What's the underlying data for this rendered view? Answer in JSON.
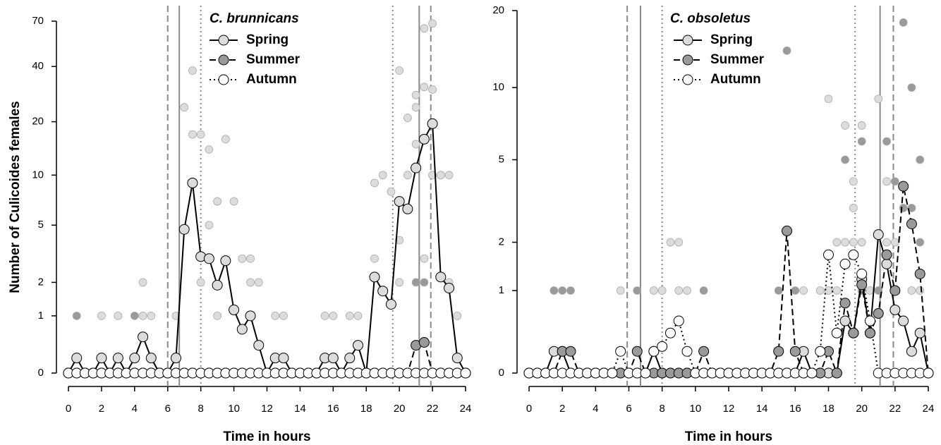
{
  "chart_data": [
    {
      "type": "line",
      "title": "C. brunnicans",
      "ylabel": "Number of Culicoides females",
      "xlabel": "Time in hours",
      "yscale": "log1p",
      "xlim": [
        0,
        24
      ],
      "xticks": [
        0,
        2,
        4,
        6,
        8,
        10,
        12,
        14,
        16,
        18,
        20,
        22,
        24
      ],
      "ylim": [
        0,
        70
      ],
      "yticks": [
        0,
        1,
        2,
        5,
        10,
        20,
        40,
        70
      ],
      "x": [
        0,
        0.5,
        1,
        1.5,
        2,
        2.5,
        3,
        3.5,
        4,
        4.5,
        5,
        5.5,
        6,
        6.5,
        7,
        7.5,
        8,
        8.5,
        9,
        9.5,
        10,
        10.5,
        11,
        11.5,
        12,
        12.5,
        13,
        13.5,
        14,
        14.5,
        15,
        15.5,
        16,
        16.5,
        17,
        17.5,
        18,
        18.5,
        19,
        19.5,
        20,
        20.5,
        21,
        21.5,
        22,
        22.5,
        23,
        23.5,
        24
      ],
      "series": [
        {
          "name": "Spring",
          "color": "#dcdcdc",
          "line_style": "solid",
          "values": [
            0,
            0.2,
            0,
            0,
            0.2,
            0,
            0.2,
            0,
            0.2,
            0.55,
            0.2,
            0,
            0,
            0.2,
            4.7,
            9,
            3.1,
            3,
            1.9,
            2.9,
            1.15,
            0.7,
            1,
            0.4,
            0,
            0.2,
            0.2,
            0,
            0,
            0,
            0,
            0.2,
            0.2,
            0,
            0.2,
            0.4,
            0,
            2.2,
            1.7,
            1.3,
            7,
            6.3,
            11,
            16,
            19.5,
            2.2,
            1.8,
            0.2,
            0
          ]
        },
        {
          "name": "Summer",
          "color": "#9a9a9a",
          "line_style": "dashed",
          "values": [
            0,
            0,
            0,
            0,
            0,
            0,
            0,
            0,
            0,
            0,
            0,
            0,
            0,
            0,
            0,
            0,
            0,
            0,
            0,
            0,
            0,
            0,
            0,
            0,
            0,
            0,
            0,
            0,
            0,
            0,
            0,
            0,
            0,
            0,
            0,
            0,
            0,
            0,
            0,
            0,
            0,
            0,
            0.4,
            0.45,
            0,
            0,
            0,
            0,
            0
          ]
        },
        {
          "name": "Autumn",
          "color": "#ffffff",
          "line_style": "dotted",
          "values": [
            0,
            0,
            0,
            0,
            0,
            0,
            0,
            0,
            0,
            0,
            0,
            0,
            0,
            0,
            0,
            0,
            0,
            0,
            0,
            0,
            0,
            0,
            0,
            0,
            0,
            0,
            0,
            0,
            0,
            0,
            0,
            0,
            0,
            0,
            0,
            0,
            0,
            0,
            0,
            0,
            0,
            0,
            0,
            0,
            0,
            0,
            0,
            0,
            0
          ]
        }
      ],
      "points": [
        {
          "color": "#dcdcdc",
          "x": [
            2,
            3,
            4.5,
            4.5,
            5,
            6.5,
            7,
            7.5,
            7.5,
            8,
            8,
            8.5,
            8.5,
            9,
            9,
            9.5,
            10,
            10.5,
            11,
            11,
            11.5,
            12.5,
            13,
            15.5,
            16,
            17,
            17.5,
            18.5,
            18.5,
            19,
            19.5,
            20,
            20,
            20,
            20.5,
            20.5,
            21,
            21,
            21,
            21.5,
            21.5,
            21.5,
            22,
            22,
            22,
            22.5,
            23,
            23,
            23.5
          ],
          "y": [
            1,
            1,
            2,
            1,
            1,
            1,
            24,
            38,
            17,
            17,
            2,
            14,
            5,
            7,
            1,
            16,
            7,
            3,
            3,
            2,
            2,
            1,
            1,
            1,
            1,
            1,
            1,
            9,
            3,
            10,
            8,
            38,
            4,
            2,
            21,
            10,
            28,
            24,
            15,
            64,
            31,
            3,
            68,
            30,
            10,
            10,
            10,
            2,
            1
          ]
        },
        {
          "color": "#9a9a9a",
          "x": [
            0.5,
            4,
            21,
            21.5
          ],
          "y": [
            1,
            1,
            2,
            2
          ]
        }
      ],
      "reference_lines": [
        {
          "x": 6,
          "style": "dashed"
        },
        {
          "x": 6.7,
          "style": "solid"
        },
        {
          "x": 8,
          "style": "dotted"
        },
        {
          "x": 19.6,
          "style": "dotted"
        },
        {
          "x": 21.2,
          "style": "solid"
        },
        {
          "x": 21.9,
          "style": "dashed"
        }
      ]
    },
    {
      "type": "line",
      "title": "C. obsoletus",
      "xlabel": "Time in hours",
      "yscale": "log1p",
      "xlim": [
        0,
        24
      ],
      "xticks": [
        0,
        2,
        4,
        6,
        8,
        10,
        12,
        14,
        16,
        18,
        20,
        22,
        24
      ],
      "ylim": [
        0,
        20
      ],
      "yticks": [
        0,
        1,
        2,
        5,
        10,
        20
      ],
      "x": [
        0,
        0.5,
        1,
        1.5,
        2,
        2.5,
        3,
        3.5,
        4,
        4.5,
        5,
        5.5,
        6,
        6.5,
        7,
        7.5,
        8,
        8.5,
        9,
        9.5,
        10,
        10.5,
        11,
        11.5,
        12,
        12.5,
        13,
        13.5,
        14,
        14.5,
        15,
        15.5,
        16,
        16.5,
        17,
        17.5,
        18,
        18.5,
        19,
        19.5,
        20,
        20.5,
        21,
        21.5,
        22,
        22.5,
        23,
        23.5,
        24
      ],
      "series": [
        {
          "name": "Spring",
          "color": "#dcdcdc",
          "line_style": "solid",
          "values": [
            0,
            0,
            0,
            0.2,
            0.2,
            0,
            0,
            0,
            0,
            0,
            0,
            0,
            0,
            0,
            0,
            0.2,
            0,
            0,
            0,
            0,
            0,
            0,
            0,
            0,
            0,
            0,
            0,
            0,
            0,
            0,
            0,
            0,
            0,
            0.2,
            0,
            0,
            0,
            0,
            0.55,
            0.4,
            1.2,
            0.4,
            2.2,
            1.5,
            0.7,
            0.55,
            0.2,
            0.4,
            0
          ]
        },
        {
          "name": "Summer",
          "color": "#9a9a9a",
          "line_style": "dashed",
          "values": [
            0,
            0,
            0,
            0,
            0.2,
            0.2,
            0,
            0,
            0,
            0,
            0,
            0,
            0,
            0.2,
            0,
            0,
            0,
            0,
            0,
            0,
            0,
            0.2,
            0,
            0,
            0,
            0,
            0,
            0,
            0,
            0,
            0.2,
            2.3,
            0.2,
            0,
            0,
            0,
            0.2,
            0,
            0.8,
            0.4,
            1.1,
            0.4,
            0.65,
            1.7,
            1,
            3.8,
            2.5,
            1.3,
            0
          ]
        },
        {
          "name": "Autumn",
          "color": "#ffffff",
          "line_style": "dotted",
          "values": [
            0,
            0,
            0,
            0,
            0,
            0,
            0,
            0,
            0,
            0,
            0,
            0.2,
            0,
            0,
            0,
            0.2,
            0.25,
            0.4,
            0.55,
            0.2,
            0,
            0,
            0,
            0,
            0,
            0,
            0,
            0,
            0,
            0,
            0,
            0,
            0,
            0,
            0,
            0.2,
            1.7,
            0.4,
            1.5,
            1.7,
            1.3,
            0.55,
            0,
            0,
            0,
            0,
            0,
            0,
            0
          ]
        }
      ],
      "points": [
        {
          "color": "#dcdcdc",
          "x": [
            5.5,
            7.5,
            8,
            8.5,
            9,
            9,
            9.5,
            16.5,
            17.5,
            18,
            18,
            18.5,
            18.5,
            19,
            19,
            19.5,
            19.5,
            19.5,
            20,
            20,
            20.5,
            21,
            21,
            21.5,
            21.5,
            22,
            22,
            23,
            23.5
          ],
          "y": [
            1,
            1,
            1,
            2,
            2,
            1,
            1,
            1,
            1,
            9,
            1,
            2,
            1,
            7,
            2,
            4,
            3,
            2,
            7,
            2,
            1,
            9,
            1,
            4,
            2,
            2,
            1,
            1,
            1
          ]
        },
        {
          "color": "#9a9a9a",
          "x": [
            1.5,
            2,
            2.5,
            6.5,
            10.5,
            15,
            15.5,
            16,
            19,
            20,
            20,
            21,
            21.5,
            22,
            22.5,
            22.5,
            23,
            23,
            23.5,
            23.5
          ],
          "y": [
            1,
            1,
            1,
            1,
            1,
            1,
            14,
            1,
            5,
            6,
            1,
            1,
            6,
            4,
            18,
            3,
            10,
            3,
            5,
            2
          ]
        }
      ],
      "reference_lines": [
        {
          "x": 5.9,
          "style": "dashed"
        },
        {
          "x": 6.7,
          "style": "solid"
        },
        {
          "x": 8,
          "style": "dotted"
        },
        {
          "x": 19.6,
          "style": "dotted"
        },
        {
          "x": 21.1,
          "style": "solid"
        },
        {
          "x": 21.9,
          "style": "dashed"
        }
      ]
    }
  ]
}
